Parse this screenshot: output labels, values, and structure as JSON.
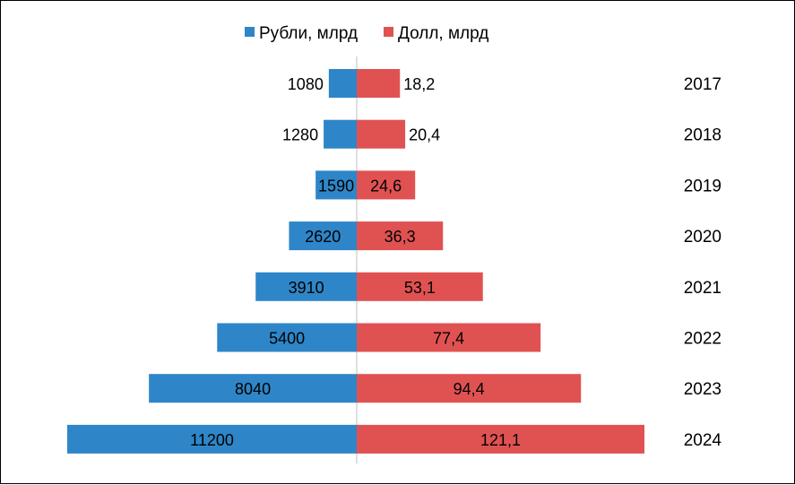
{
  "chart_data": {
    "type": "bar",
    "orientation": "horizontal-diverging",
    "categories": [
      "2017",
      "2018",
      "2019",
      "2020",
      "2021",
      "2022",
      "2023",
      "2024"
    ],
    "series": [
      {
        "name": "Рубли, млрд",
        "color": "#2E86C8",
        "values": [
          1080,
          1280,
          1590,
          2620,
          3910,
          5400,
          8040,
          11200
        ],
        "labels": [
          "1080",
          "1280",
          "1590",
          "2620",
          "3910",
          "5400",
          "8040",
          "11200"
        ],
        "side": "left"
      },
      {
        "name": "Долл, млрд",
        "color": "#E05252",
        "values": [
          18.2,
          20.4,
          24.6,
          36.3,
          53.1,
          77.4,
          94.4,
          121.1
        ],
        "labels": [
          "18,2",
          "20,4",
          "24,6",
          "36,3",
          "53,1",
          "77,4",
          "94,4",
          "121,1"
        ],
        "side": "right"
      }
    ],
    "title": "",
    "legend_position": "top-center",
    "grid": false
  }
}
